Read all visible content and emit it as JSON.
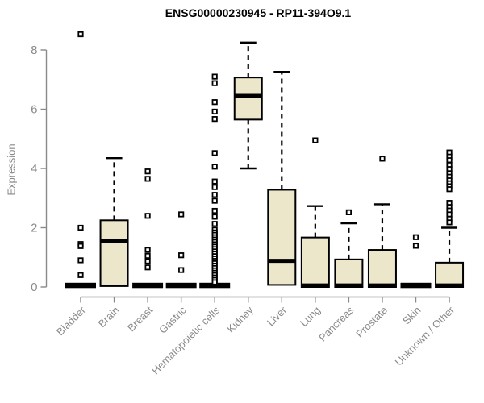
{
  "window": {
    "title": "ENSG00000230945 - RP11-394O9.1"
  },
  "colors": {
    "box_fill": "#ECE7CB",
    "box_stroke": "#000000",
    "axis": "#8a8a8a",
    "tick_label": "#8a8a8a",
    "title_text": "#000000",
    "background": "#ffffff"
  },
  "chart_data": {
    "type": "boxplot",
    "title": "ENSG00000230945 - RP11-394O9.1",
    "xlabel": "",
    "ylabel": "Expression",
    "ylim": [
      0,
      8.6
    ],
    "yticks": [
      0,
      2,
      4,
      6,
      8
    ],
    "grid": false,
    "legend": "none",
    "categories": [
      "Bladder",
      "Brain",
      "Breast",
      "Gastric",
      "Hematopoietic cells",
      "Kidney",
      "Liver",
      "Lung",
      "Pancreas",
      "Prostate",
      "Skin",
      "Unknown / Other"
    ],
    "series": [
      {
        "name": "Bladder",
        "collapsed": true,
        "q1": 0,
        "median": 0,
        "q3": 0,
        "whisker_low": 0,
        "whisker_high": 0,
        "outliers": [
          8.53,
          2.0,
          1.45,
          1.38,
          0.9,
          0.4
        ]
      },
      {
        "name": "Brain",
        "collapsed": false,
        "q1": 0.03,
        "median": 1.55,
        "q3": 2.25,
        "whisker_low": 0.03,
        "whisker_high": 4.35,
        "outliers": []
      },
      {
        "name": "Breast",
        "collapsed": true,
        "q1": 0,
        "median": 0,
        "q3": 0,
        "whisker_low": 0,
        "whisker_high": 0,
        "outliers": [
          3.9,
          3.65,
          2.4,
          1.25,
          1.05,
          0.87,
          0.66
        ]
      },
      {
        "name": "Gastric",
        "collapsed": true,
        "q1": 0,
        "median": 0,
        "q3": 0,
        "whisker_low": 0,
        "whisker_high": 0,
        "outliers": [
          2.45,
          1.07,
          0.57
        ]
      },
      {
        "name": "Hematopoietic cells",
        "collapsed": true,
        "q1": 0,
        "median": 0,
        "q3": 0,
        "whisker_low": 0,
        "whisker_high": 0,
        "outliers": [
          7.1,
          6.88,
          6.24,
          5.92,
          5.67,
          4.52,
          4.06,
          3.56,
          3.37,
          3.11,
          2.91,
          2.57,
          2.37,
          2.13,
          1.93,
          1.84,
          1.76,
          1.68,
          1.6,
          1.52,
          1.44,
          1.36,
          1.28,
          1.2,
          1.12,
          1.04,
          0.96,
          0.88,
          0.8,
          0.72,
          0.64,
          0.56,
          0.48,
          0.4,
          0.32,
          0.24,
          0.16
        ]
      },
      {
        "name": "Kidney",
        "collapsed": false,
        "q1": 5.65,
        "median": 6.45,
        "q3": 7.07,
        "whisker_low": 4.0,
        "whisker_high": 8.25,
        "outliers": []
      },
      {
        "name": "Liver",
        "collapsed": false,
        "q1": 0.07,
        "median": 0.88,
        "q3": 3.28,
        "whisker_low": 0.07,
        "whisker_high": 7.26,
        "outliers": []
      },
      {
        "name": "Lung",
        "collapsed": false,
        "q1": 0.0,
        "median": 0.05,
        "q3": 1.67,
        "whisker_low": 0.0,
        "whisker_high": 2.73,
        "outliers": [
          4.95
        ]
      },
      {
        "name": "Pancreas",
        "collapsed": false,
        "q1": 0.0,
        "median": 0.05,
        "q3": 0.93,
        "whisker_low": 0.0,
        "whisker_high": 2.15,
        "outliers": [
          2.52
        ]
      },
      {
        "name": "Prostate",
        "collapsed": false,
        "q1": 0.0,
        "median": 0.05,
        "q3": 1.25,
        "whisker_low": 0.0,
        "whisker_high": 2.79,
        "outliers": [
          4.33
        ]
      },
      {
        "name": "Skin",
        "collapsed": true,
        "q1": 0,
        "median": 0,
        "q3": 0,
        "whisker_low": 0,
        "whisker_high": 0,
        "outliers": [
          1.68,
          1.39
        ]
      },
      {
        "name": "Unknown / Other",
        "collapsed": false,
        "q1": 0.0,
        "median": 0.05,
        "q3": 0.82,
        "whisker_low": 0.0,
        "whisker_high": 2.0,
        "outliers": [
          4.54,
          4.4,
          4.28,
          4.12,
          3.98,
          3.84,
          3.72,
          3.6,
          3.5,
          3.4,
          3.3,
          2.84,
          2.7,
          2.58,
          2.45,
          2.3,
          2.18
        ]
      }
    ]
  }
}
